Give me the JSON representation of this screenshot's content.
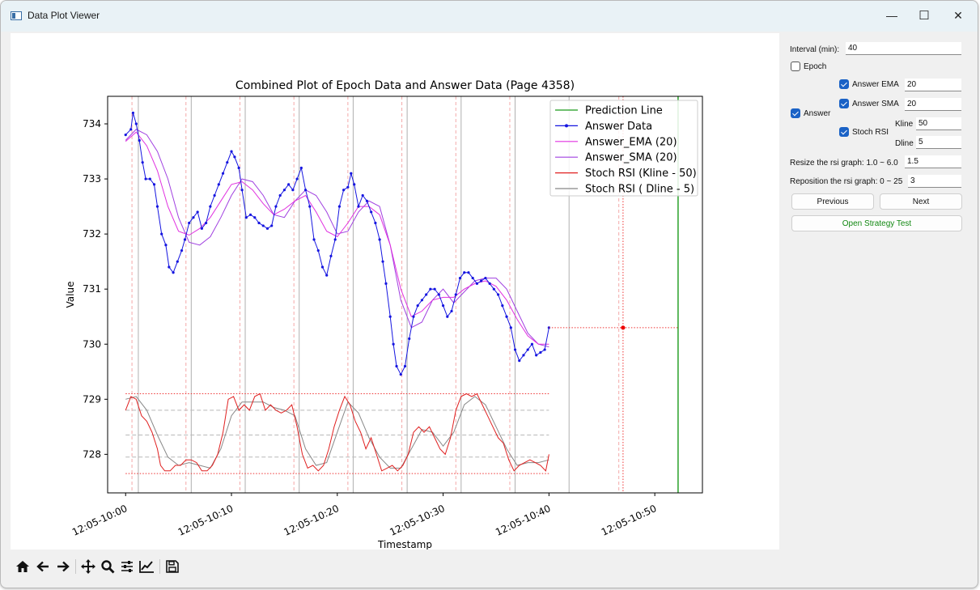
{
  "window": {
    "title": "Data Plot Viewer",
    "controls": {
      "minimize": "—",
      "maximize": "☐",
      "close": "✕"
    }
  },
  "sidebar": {
    "interval_label": "Interval (min):",
    "interval_value": "40",
    "epoch_label": "Epoch",
    "answer_label": "Answer",
    "answer_ema_label": "Answer EMA",
    "answer_ema_value": "20",
    "answer_sma_label": "Answer SMA",
    "answer_sma_value": "20",
    "stoch_rsi_label": "Stoch RSI",
    "kline_label": "Kline",
    "kline_value": "50",
    "dline_label": "Dline",
    "dline_value": "5",
    "resize_label": "Resize the rsi graph: 1.0 ~ 6.0",
    "resize_value": "1.5",
    "reposition_label": "Reposition the rsi graph: 0 ~ 25",
    "reposition_value": "3",
    "previous_label": "Previous",
    "next_label": "Next",
    "strategy_label": "Open Strategy Test"
  },
  "chart_data": {
    "type": "line",
    "title": "Combined Plot of Epoch Data and Answer Data (Page 4358)",
    "xlabel": "Timestamp",
    "ylabel": "Value",
    "xlim": [
      -1.7,
      54.5
    ],
    "ylim": [
      727.3,
      734.5
    ],
    "yticks": [
      728,
      729,
      730,
      731,
      732,
      733,
      734
    ],
    "xticks": [
      {
        "x": 0,
        "label": "12:05-10:00"
      },
      {
        "x": 10,
        "label": "12:05-10:10"
      },
      {
        "x": 20,
        "label": "12:05-10:20"
      },
      {
        "x": 30,
        "label": "12:05-10:30"
      },
      {
        "x": 40,
        "label": "12:05-10:40"
      },
      {
        "x": 50,
        "label": "12:05-10:50"
      }
    ],
    "legend": {
      "position": "top-right",
      "entries": [
        "Prediction Line",
        "Answer Data",
        "Answer_EMA (20)",
        "Answer_SMA (20)",
        "Stoch RSI (Kline - 50)",
        "Stoch RSI ( Dline - 5)"
      ]
    },
    "prediction_line_x": 52.2,
    "predicted_point": {
      "x": 47,
      "y": 730.3
    },
    "answer_data": [
      [
        0,
        733.8
      ],
      [
        0.5,
        733.9
      ],
      [
        0.7,
        734.2
      ],
      [
        1,
        734
      ],
      [
        1.3,
        733.7
      ],
      [
        1.6,
        733.3
      ],
      [
        1.9,
        733
      ],
      [
        2.3,
        733
      ],
      [
        2.7,
        732.9
      ],
      [
        3,
        732.5
      ],
      [
        3.4,
        732
      ],
      [
        3.8,
        731.8
      ],
      [
        4.1,
        731.4
      ],
      [
        4.5,
        731.3
      ],
      [
        4.9,
        731.5
      ],
      [
        5.3,
        731.7
      ],
      [
        5.6,
        731.9
      ],
      [
        6,
        732.2
      ],
      [
        6.4,
        732.3
      ],
      [
        6.8,
        732.4
      ],
      [
        7.2,
        732.1
      ],
      [
        7.6,
        732.2
      ],
      [
        8,
        732.5
      ],
      [
        8.4,
        732.7
      ],
      [
        8.8,
        732.9
      ],
      [
        9.2,
        733.1
      ],
      [
        9.6,
        733.3
      ],
      [
        10,
        733.5
      ],
      [
        10.3,
        733.4
      ],
      [
        10.7,
        733.2
      ],
      [
        11,
        732.8
      ],
      [
        11.4,
        732.3
      ],
      [
        11.8,
        732.35
      ],
      [
        12.2,
        732.3
      ],
      [
        12.6,
        732.2
      ],
      [
        13,
        732.15
      ],
      [
        13.4,
        732.1
      ],
      [
        13.8,
        732.15
      ],
      [
        14.2,
        732.5
      ],
      [
        14.6,
        732.7
      ],
      [
        15,
        732.8
      ],
      [
        15.4,
        732.9
      ],
      [
        15.8,
        732.8
      ],
      [
        16.2,
        733
      ],
      [
        16.6,
        733.2
      ],
      [
        17,
        732.8
      ],
      [
        17.4,
        732.5
      ],
      [
        17.8,
        731.9
      ],
      [
        18.2,
        731.7
      ],
      [
        18.6,
        731.4
      ],
      [
        19,
        731.25
      ],
      [
        19.4,
        731.6
      ],
      [
        19.8,
        731.9
      ],
      [
        20.2,
        732.5
      ],
      [
        20.6,
        732.8
      ],
      [
        21,
        732.85
      ],
      [
        21.3,
        733.1
      ],
      [
        21.6,
        732.9
      ],
      [
        22,
        732.5
      ],
      [
        22.4,
        732.7
      ],
      [
        22.8,
        732.6
      ],
      [
        23.2,
        732.4
      ],
      [
        23.6,
        732.2
      ],
      [
        24,
        731.9
      ],
      [
        24.3,
        731.5
      ],
      [
        24.6,
        731.1
      ],
      [
        25,
        730.5
      ],
      [
        25.3,
        730
      ],
      [
        25.6,
        729.6
      ],
      [
        26,
        729.45
      ],
      [
        26.4,
        729.6
      ],
      [
        26.8,
        730.1
      ],
      [
        27.2,
        730.5
      ],
      [
        27.6,
        730.7
      ],
      [
        28,
        730.8
      ],
      [
        28.4,
        730.9
      ],
      [
        28.8,
        731
      ],
      [
        29.2,
        731
      ],
      [
        29.6,
        730.9
      ],
      [
        30,
        730.7
      ],
      [
        30.4,
        730.5
      ],
      [
        30.8,
        730.6
      ],
      [
        31.2,
        730.9
      ],
      [
        31.6,
        731.2
      ],
      [
        32,
        731.3
      ],
      [
        32.4,
        731.3
      ],
      [
        32.8,
        731.2
      ],
      [
        33.2,
        731.1
      ],
      [
        33.6,
        731.15
      ],
      [
        34,
        731.2
      ],
      [
        34.4,
        731.1
      ],
      [
        34.8,
        731
      ],
      [
        35.2,
        730.9
      ],
      [
        35.6,
        730.7
      ],
      [
        36,
        730.5
      ],
      [
        36.4,
        730.3
      ],
      [
        36.8,
        729.9
      ],
      [
        37.2,
        729.7
      ],
      [
        37.6,
        729.8
      ],
      [
        38,
        729.9
      ],
      [
        38.4,
        730
      ],
      [
        38.8,
        729.8
      ],
      [
        39.2,
        729.85
      ],
      [
        39.6,
        729.9
      ],
      [
        40,
        730.3
      ]
    ],
    "answer_ema": [
      [
        0,
        733.68
      ],
      [
        1,
        733.85
      ],
      [
        2,
        733.6
      ],
      [
        3,
        733.15
      ],
      [
        4,
        732.5
      ],
      [
        5,
        732.05
      ],
      [
        6,
        731.98
      ],
      [
        7,
        732.1
      ],
      [
        8,
        732.3
      ],
      [
        9,
        732.6
      ],
      [
        10,
        732.9
      ],
      [
        11,
        732.95
      ],
      [
        12,
        732.8
      ],
      [
        13,
        732.55
      ],
      [
        14,
        732.35
      ],
      [
        15,
        732.45
      ],
      [
        16,
        732.6
      ],
      [
        17,
        732.7
      ],
      [
        18,
        732.4
      ],
      [
        19,
        732.05
      ],
      [
        20,
        731.95
      ],
      [
        21,
        732.2
      ],
      [
        22,
        732.5
      ],
      [
        23,
        732.5
      ],
      [
        24,
        732.35
      ],
      [
        25,
        731.8
      ],
      [
        26,
        731.0
      ],
      [
        27,
        730.5
      ],
      [
        28,
        730.6
      ],
      [
        29,
        730.8
      ],
      [
        30,
        730.85
      ],
      [
        31,
        730.85
      ],
      [
        32,
        731.0
      ],
      [
        33,
        731.1
      ],
      [
        34,
        731.15
      ],
      [
        35,
        731.05
      ],
      [
        36,
        730.8
      ],
      [
        37,
        730.45
      ],
      [
        38,
        730.15
      ],
      [
        39,
        730.0
      ],
      [
        40,
        730.0
      ]
    ],
    "answer_sma": [
      [
        0,
        733.7
      ],
      [
        1,
        733.9
      ],
      [
        2,
        733.8
      ],
      [
        3,
        733.5
      ],
      [
        4,
        733.0
      ],
      [
        5,
        732.3
      ],
      [
        6,
        731.85
      ],
      [
        7,
        731.8
      ],
      [
        8,
        731.95
      ],
      [
        9,
        732.3
      ],
      [
        10,
        732.7
      ],
      [
        11,
        733.0
      ],
      [
        12,
        732.95
      ],
      [
        13,
        732.7
      ],
      [
        14,
        732.35
      ],
      [
        15,
        732.3
      ],
      [
        16,
        732.6
      ],
      [
        17,
        732.8
      ],
      [
        18,
        732.7
      ],
      [
        19,
        732.4
      ],
      [
        20,
        732.0
      ],
      [
        21,
        732.05
      ],
      [
        22,
        732.4
      ],
      [
        23,
        732.6
      ],
      [
        24,
        732.5
      ],
      [
        25,
        731.8
      ],
      [
        26,
        730.8
      ],
      [
        27,
        730.3
      ],
      [
        28,
        730.4
      ],
      [
        29,
        730.8
      ],
      [
        30,
        731.0
      ],
      [
        31,
        730.75
      ],
      [
        32,
        730.95
      ],
      [
        33,
        731.15
      ],
      [
        34,
        731.2
      ],
      [
        35,
        731.2
      ],
      [
        36,
        731.0
      ],
      [
        37,
        730.6
      ],
      [
        38,
        730.2
      ],
      [
        39,
        730.0
      ],
      [
        40,
        729.95
      ]
    ],
    "stoch_kline": [
      [
        0,
        728.8
      ],
      [
        0.5,
        729.05
      ],
      [
        1,
        729.0
      ],
      [
        1.5,
        728.7
      ],
      [
        2,
        728.6
      ],
      [
        2.5,
        728.4
      ],
      [
        3,
        728.1
      ],
      [
        3.3,
        727.8
      ],
      [
        3.7,
        727.7
      ],
      [
        4.2,
        727.7
      ],
      [
        4.7,
        727.8
      ],
      [
        5.2,
        727.8
      ],
      [
        5.7,
        727.9
      ],
      [
        6.2,
        727.9
      ],
      [
        6.7,
        727.85
      ],
      [
        7.2,
        727.7
      ],
      [
        7.7,
        727.7
      ],
      [
        8.2,
        727.8
      ],
      [
        8.7,
        728.0
      ],
      [
        9.2,
        728.4
      ],
      [
        9.7,
        729.0
      ],
      [
        10.2,
        729.05
      ],
      [
        10.7,
        728.8
      ],
      [
        11.2,
        728.9
      ],
      [
        11.7,
        728.8
      ],
      [
        12.2,
        729.05
      ],
      [
        12.7,
        729.1
      ],
      [
        13.2,
        728.8
      ],
      [
        13.7,
        728.9
      ],
      [
        14.2,
        728.8
      ],
      [
        14.7,
        728.75
      ],
      [
        15.2,
        728.8
      ],
      [
        15.7,
        728.9
      ],
      [
        16.2,
        728.5
      ],
      [
        16.7,
        728.0
      ],
      [
        17.2,
        727.75
      ],
      [
        17.7,
        727.8
      ],
      [
        18.2,
        727.7
      ],
      [
        18.7,
        727.8
      ],
      [
        19.2,
        728.1
      ],
      [
        19.7,
        728.5
      ],
      [
        20.2,
        728.8
      ],
      [
        20.7,
        729.05
      ],
      [
        21.2,
        728.9
      ],
      [
        21.7,
        728.6
      ],
      [
        22.2,
        728.4
      ],
      [
        22.7,
        728.1
      ],
      [
        23.2,
        728.3
      ],
      [
        23.7,
        728.0
      ],
      [
        24.2,
        727.7
      ],
      [
        24.7,
        727.75
      ],
      [
        25.2,
        727.8
      ],
      [
        25.7,
        727.7
      ],
      [
        26.2,
        727.8
      ],
      [
        26.7,
        728.0
      ],
      [
        27.2,
        728.4
      ],
      [
        27.7,
        728.5
      ],
      [
        28.2,
        728.4
      ],
      [
        28.7,
        728.5
      ],
      [
        29.2,
        728.3
      ],
      [
        29.7,
        728.1
      ],
      [
        30.2,
        728.0
      ],
      [
        30.7,
        728.3
      ],
      [
        31.2,
        728.8
      ],
      [
        31.7,
        729.05
      ],
      [
        32.2,
        729.1
      ],
      [
        32.7,
        729.05
      ],
      [
        33.2,
        729.1
      ],
      [
        33.7,
        728.9
      ],
      [
        34.2,
        728.7
      ],
      [
        34.7,
        728.5
      ],
      [
        35.2,
        728.3
      ],
      [
        35.7,
        728.2
      ],
      [
        36.2,
        727.9
      ],
      [
        36.7,
        727.7
      ],
      [
        37.2,
        727.8
      ],
      [
        37.7,
        727.85
      ],
      [
        38.2,
        727.9
      ],
      [
        38.7,
        727.85
      ],
      [
        39.2,
        727.8
      ],
      [
        39.7,
        727.7
      ],
      [
        40,
        728.0
      ]
    ],
    "stoch_dline": [
      [
        0,
        729.0
      ],
      [
        1,
        729.05
      ],
      [
        2,
        728.8
      ],
      [
        3,
        728.35
      ],
      [
        4,
        727.95
      ],
      [
        5,
        727.8
      ],
      [
        6,
        727.85
      ],
      [
        7,
        727.8
      ],
      [
        8,
        727.75
      ],
      [
        9,
        728.1
      ],
      [
        10,
        728.7
      ],
      [
        11,
        728.95
      ],
      [
        12,
        728.95
      ],
      [
        13,
        728.95
      ],
      [
        14,
        728.85
      ],
      [
        15,
        728.8
      ],
      [
        16,
        728.7
      ],
      [
        17,
        728.1
      ],
      [
        18,
        727.8
      ],
      [
        19,
        727.85
      ],
      [
        20,
        728.4
      ],
      [
        21,
        728.95
      ],
      [
        22,
        728.75
      ],
      [
        23,
        728.3
      ],
      [
        24,
        727.95
      ],
      [
        25,
        727.75
      ],
      [
        26,
        727.75
      ],
      [
        27,
        728.1
      ],
      [
        28,
        728.45
      ],
      [
        29,
        728.4
      ],
      [
        30,
        728.15
      ],
      [
        31,
        728.4
      ],
      [
        32,
        728.9
      ],
      [
        33,
        729.05
      ],
      [
        34,
        728.9
      ],
      [
        35,
        728.5
      ],
      [
        36,
        728.1
      ],
      [
        37,
        727.8
      ],
      [
        38,
        727.85
      ],
      [
        39,
        727.85
      ],
      [
        40,
        727.9
      ]
    ],
    "rsi_dotted_levels": [
      729.1,
      727.65
    ],
    "rsi_dashed_levels": [
      728.8,
      728.35,
      727.95
    ],
    "vertical_solid_x": [
      1.2,
      6.2,
      11.3,
      16.4,
      21.5,
      26.6,
      31.7,
      36.8,
      41.9
    ],
    "vertical_dashed_x": [
      0.6,
      5.7,
      10.8,
      15.9,
      21.0,
      26.1,
      31.2,
      36.3,
      46.6
    ]
  }
}
